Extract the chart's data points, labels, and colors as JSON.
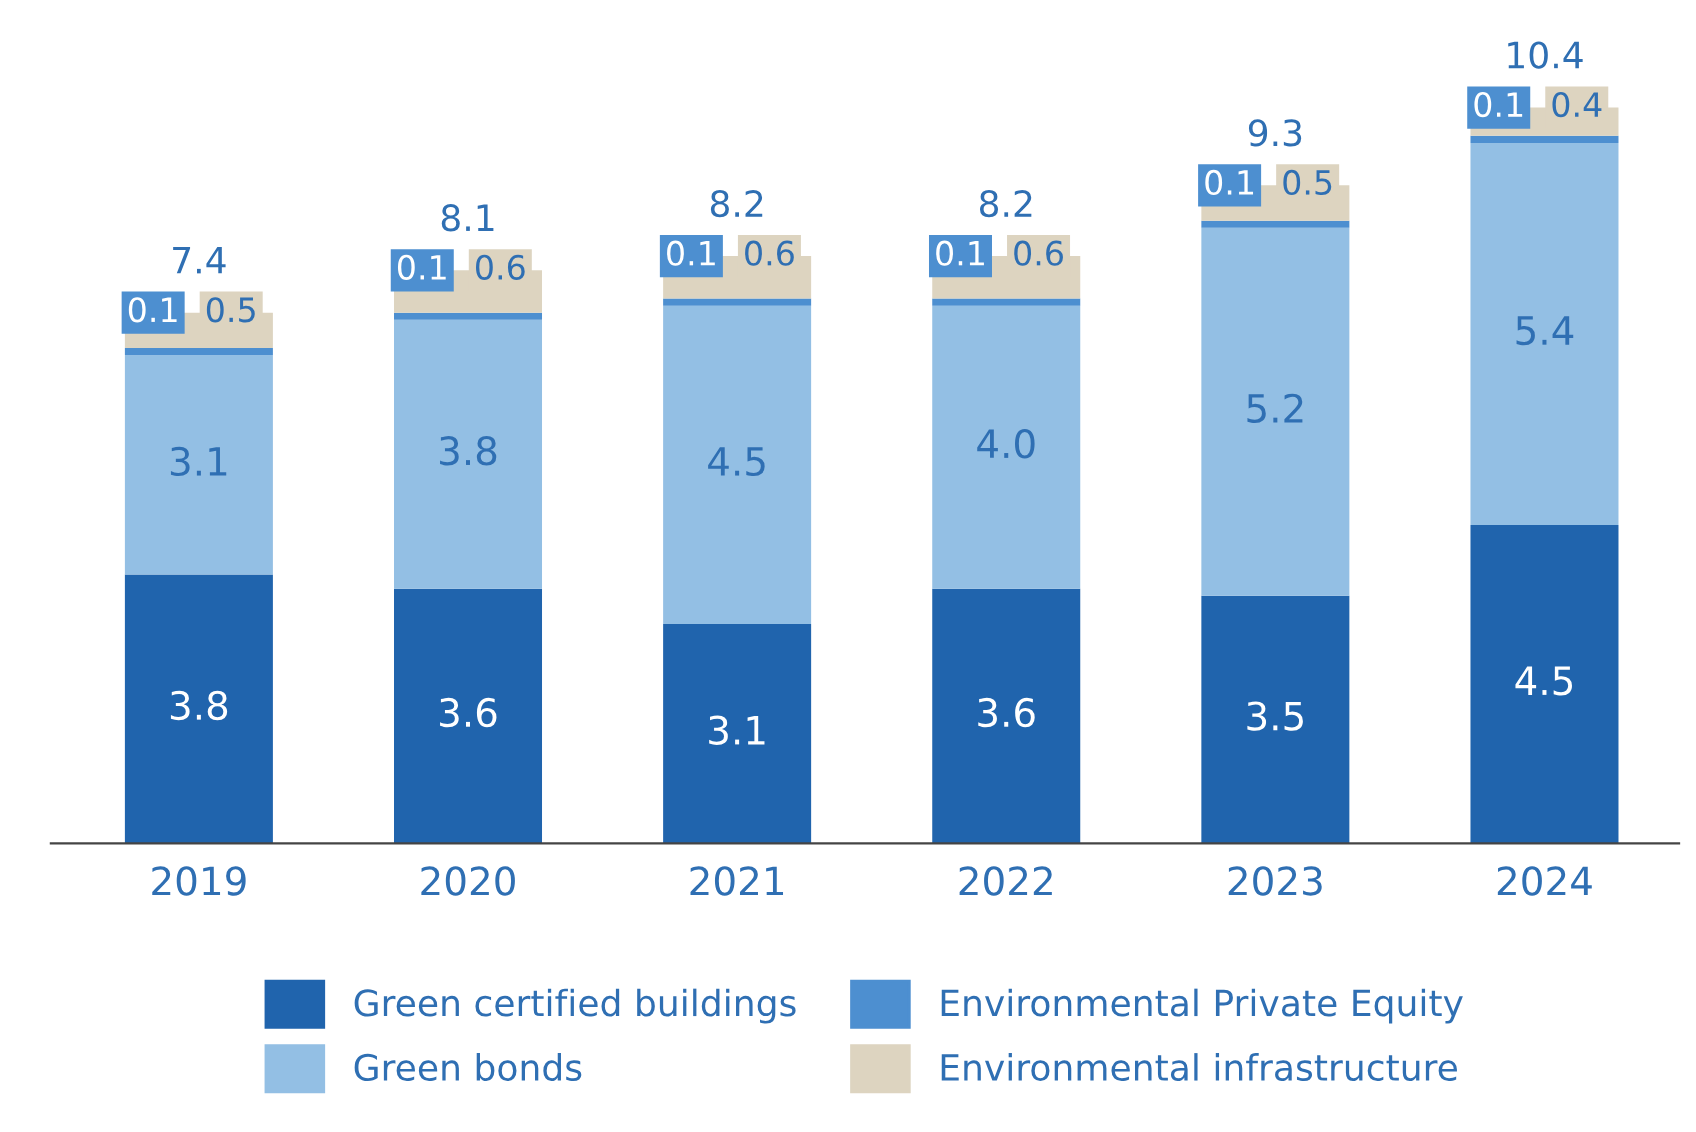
{
  "chart_data": {
    "type": "bar",
    "stacked": true,
    "data_labels": true,
    "legend": "bottom",
    "grid": false,
    "categories": [
      "2019",
      "2020",
      "2021",
      "2022",
      "2023",
      "2024"
    ],
    "series": [
      {
        "name": "Green certified buildings",
        "color": "#2064ad",
        "values": [
          3.8,
          3.6,
          3.1,
          3.6,
          3.5,
          4.5
        ]
      },
      {
        "name": "Green bonds",
        "color": "#93bfe4",
        "values": [
          3.1,
          3.8,
          4.5,
          4.0,
          5.2,
          5.4
        ],
        "value_labels": [
          "3.1",
          "3.8",
          "4.5",
          "4.0",
          "5.2",
          "5.4"
        ]
      },
      {
        "name": "Environmental Private Equity",
        "color": "#4d8fd0",
        "values": [
          0.1,
          0.1,
          0.1,
          0.1,
          0.1,
          0.1
        ]
      },
      {
        "name": "Environmental infrastructure",
        "color": "#ddd4c0",
        "values": [
          0.5,
          0.6,
          0.6,
          0.6,
          0.5,
          0.4
        ]
      }
    ],
    "totals": [
      "7.4",
      "8.1",
      "8.2",
      "8.2",
      "9.3",
      "10.4"
    ]
  }
}
